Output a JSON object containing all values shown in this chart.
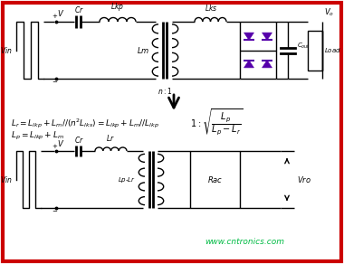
{
  "bg_color": "#ffffff",
  "border_color": "#cc0000",
  "border_lw": 3,
  "line_color": "#000000",
  "diode_color": "#5500aa",
  "watermark": "www.cntronics.com",
  "watermark_color": "#00bb44",
  "figsize": [
    3.8,
    2.92
  ],
  "dpi": 100
}
